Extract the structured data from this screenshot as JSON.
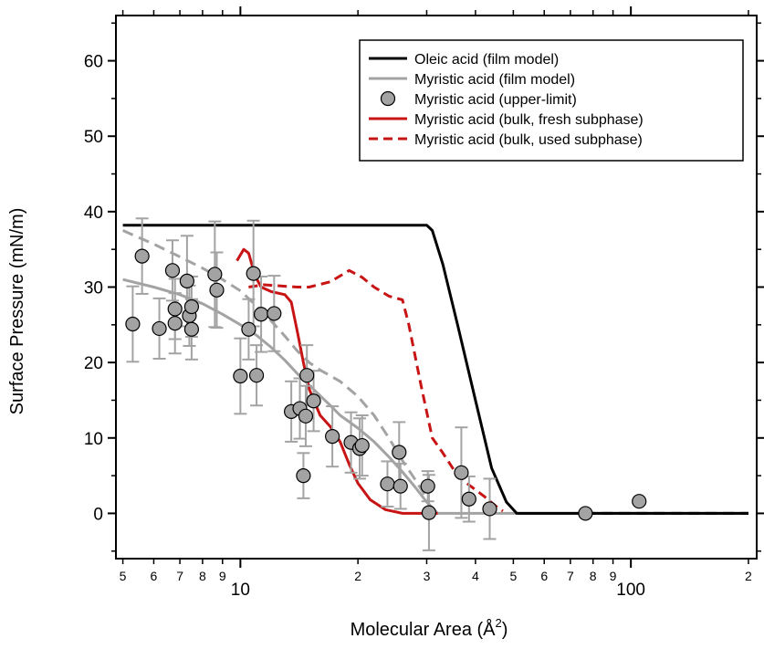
{
  "chart_data": {
    "type": "line",
    "xlabel": "Molecular Area (Å",
    "xlabel_sup": "2",
    "xlabel_end": ")",
    "ylabel": "Surface Pressure (mN/m)",
    "x_scale": "log",
    "xlim": [
      4.8,
      210
    ],
    "ylim": [
      -6,
      66
    ],
    "y_ticks": [
      0,
      10,
      20,
      30,
      40,
      50,
      60
    ],
    "x_major_ticks": [
      {
        "value": 10,
        "label": "10"
      },
      {
        "value": 100,
        "label": "100"
      }
    ],
    "x_minor_ticks": [
      {
        "value": 5,
        "label": "5"
      },
      {
        "value": 6,
        "label": "6"
      },
      {
        "value": 7,
        "label": "7"
      },
      {
        "value": 8,
        "label": "8"
      },
      {
        "value": 9,
        "label": "9"
      },
      {
        "value": 20,
        "label": "2"
      },
      {
        "value": 30,
        "label": "3"
      },
      {
        "value": 40,
        "label": "4"
      },
      {
        "value": 50,
        "label": "5"
      },
      {
        "value": 60,
        "label": "6"
      },
      {
        "value": 70,
        "label": "7"
      },
      {
        "value": 80,
        "label": "8"
      },
      {
        "value": 90,
        "label": "9"
      },
      {
        "value": 200,
        "label": "2"
      }
    ],
    "grid": false,
    "legend_position": "top-right",
    "series": [
      {
        "name": "Oleic acid (film model)",
        "style": "solid",
        "color": "#000000",
        "points": [
          [
            5,
            38.2
          ],
          [
            30,
            38.2
          ],
          [
            31,
            37.5
          ],
          [
            33,
            33
          ],
          [
            36,
            25
          ],
          [
            40,
            15
          ],
          [
            44,
            6
          ],
          [
            48,
            1.5
          ],
          [
            51,
            0
          ],
          [
            200,
            0
          ]
        ]
      },
      {
        "name": "Myristic acid (film model)",
        "style": "solid",
        "color": "#a3a3a3",
        "points": [
          [
            5,
            31
          ],
          [
            6,
            30
          ],
          [
            7,
            29
          ],
          [
            8,
            27.8
          ],
          [
            9,
            26.4
          ],
          [
            10,
            25
          ],
          [
            11,
            23.6
          ],
          [
            12,
            22
          ],
          [
            13,
            20.3
          ],
          [
            14,
            18.5
          ],
          [
            15,
            17
          ],
          [
            16,
            15.6
          ],
          [
            17,
            14.3
          ],
          [
            18,
            13
          ],
          [
            20,
            11.3
          ],
          [
            22,
            9.5
          ],
          [
            24,
            7.5
          ],
          [
            26,
            5.5
          ],
          [
            28,
            3.5
          ],
          [
            30,
            1.5
          ],
          [
            32,
            0
          ],
          [
            200,
            0
          ]
        ]
      },
      {
        "name": "Myristic acid (upper-limit)",
        "style": "markers",
        "color": "#a3a3a3",
        "points": [
          {
            "x": 5.3,
            "y": 25.1,
            "err": 5
          },
          {
            "x": 5.6,
            "y": 34.1,
            "err": 5
          },
          {
            "x": 6.2,
            "y": 24.5,
            "err": 4
          },
          {
            "x": 6.7,
            "y": 32.2,
            "err": 4
          },
          {
            "x": 6.8,
            "y": 27.1,
            "err": 4
          },
          {
            "x": 6.8,
            "y": 25.2,
            "err": 4
          },
          {
            "x": 7.3,
            "y": 30.8,
            "err": 6
          },
          {
            "x": 7.4,
            "y": 26.2,
            "err": 4
          },
          {
            "x": 7.5,
            "y": 27.4,
            "err": 4
          },
          {
            "x": 7.5,
            "y": 24.4,
            "err": 4
          },
          {
            "x": 8.6,
            "y": 31.7,
            "err": 7
          },
          {
            "x": 8.7,
            "y": 29.6,
            "err": 5
          },
          {
            "x": 10.0,
            "y": 18.2,
            "err": 5
          },
          {
            "x": 10.5,
            "y": 24.4,
            "err": 4
          },
          {
            "x": 10.8,
            "y": 31.8,
            "err": 7
          },
          {
            "x": 11.0,
            "y": 18.3,
            "err": 4
          },
          {
            "x": 11.3,
            "y": 26.4,
            "err": 5
          },
          {
            "x": 12.2,
            "y": 26.5,
            "err": 5
          },
          {
            "x": 13.5,
            "y": 13.5,
            "err": 4
          },
          {
            "x": 14.2,
            "y": 13.9,
            "err": 4
          },
          {
            "x": 14.5,
            "y": 5.0,
            "err": 3
          },
          {
            "x": 14.7,
            "y": 12.9,
            "err": 4
          },
          {
            "x": 14.8,
            "y": 18.3,
            "err": 4
          },
          {
            "x": 15.4,
            "y": 14.9,
            "err": 4
          },
          {
            "x": 17.2,
            "y": 10.2,
            "err": 4
          },
          {
            "x": 19.2,
            "y": 9.4,
            "err": 4
          },
          {
            "x": 20.2,
            "y": 8.6,
            "err": 4
          },
          {
            "x": 20.5,
            "y": 9.0,
            "err": 4
          },
          {
            "x": 23.8,
            "y": 3.9,
            "err": 3
          },
          {
            "x": 25.5,
            "y": 8.1,
            "err": 4
          },
          {
            "x": 25.7,
            "y": 3.6,
            "err": 3
          },
          {
            "x": 30.2,
            "y": 3.6,
            "err": 2
          },
          {
            "x": 30.4,
            "y": 0.1,
            "err": 5
          },
          {
            "x": 36.8,
            "y": 5.4,
            "err": 6
          },
          {
            "x": 38.5,
            "y": 1.9,
            "err": 3
          },
          {
            "x": 43.5,
            "y": 0.6,
            "err": 4
          },
          {
            "x": 76.5,
            "y": 0.0,
            "err": 0
          },
          {
            "x": 105.0,
            "y": 1.6,
            "err": 0
          }
        ]
      },
      {
        "name": "Myristic acid (bulk, fresh subphase)",
        "style": "solid",
        "color": "#c81414",
        "points": [
          [
            9.8,
            33.5
          ],
          [
            10.2,
            35
          ],
          [
            10.5,
            34.5
          ],
          [
            10.9,
            31.5
          ],
          [
            11.3,
            30
          ],
          [
            12,
            29.4
          ],
          [
            13,
            29
          ],
          [
            13.5,
            28
          ],
          [
            14,
            24
          ],
          [
            14.5,
            20
          ],
          [
            15,
            16.5
          ],
          [
            16,
            13
          ],
          [
            17,
            11.5
          ],
          [
            18,
            9.5
          ],
          [
            19,
            6.5
          ],
          [
            20,
            4
          ],
          [
            21.5,
            1.8
          ],
          [
            23.5,
            0.5
          ],
          [
            26,
            0
          ],
          [
            32,
            0
          ]
        ]
      },
      {
        "name": "Myristic acid (bulk, used subphase)",
        "style": "dashed",
        "color": "#c81414",
        "points": [
          [
            10.5,
            30
          ],
          [
            11.5,
            30.3
          ],
          [
            14,
            30
          ],
          [
            15,
            30
          ],
          [
            17,
            30.7
          ],
          [
            19,
            32.2
          ],
          [
            20.5,
            31.3
          ],
          [
            22,
            30
          ],
          [
            24,
            28.8
          ],
          [
            26,
            28.3
          ],
          [
            27,
            25
          ],
          [
            29,
            17
          ],
          [
            31,
            10
          ],
          [
            33,
            8
          ],
          [
            36,
            5
          ],
          [
            38,
            4
          ],
          [
            42,
            2.3
          ],
          [
            45,
            1
          ],
          [
            47,
            0.3
          ]
        ]
      },
      {
        "name": "",
        "style": "dashed",
        "color": "#a3a3a3",
        "points": [
          [
            5,
            37.5
          ],
          [
            6,
            35.7
          ],
          [
            7,
            34
          ],
          [
            8,
            32.5
          ],
          [
            9,
            31
          ],
          [
            10,
            29.5
          ],
          [
            11,
            27.5
          ],
          [
            12,
            25.5
          ],
          [
            13,
            23.5
          ],
          [
            14,
            21.5
          ],
          [
            15,
            20
          ],
          [
            16,
            19
          ],
          [
            18,
            17.5
          ],
          [
            20,
            15.5
          ],
          [
            22,
            13
          ],
          [
            24,
            10
          ],
          [
            26,
            7
          ],
          [
            28,
            4.5
          ],
          [
            30,
            2
          ],
          [
            31,
            0
          ]
        ]
      },
      {
        "name": "",
        "style": "dashed",
        "color": "#000000",
        "points": [
          [
            76,
            0
          ],
          [
            200,
            0
          ]
        ]
      }
    ]
  }
}
